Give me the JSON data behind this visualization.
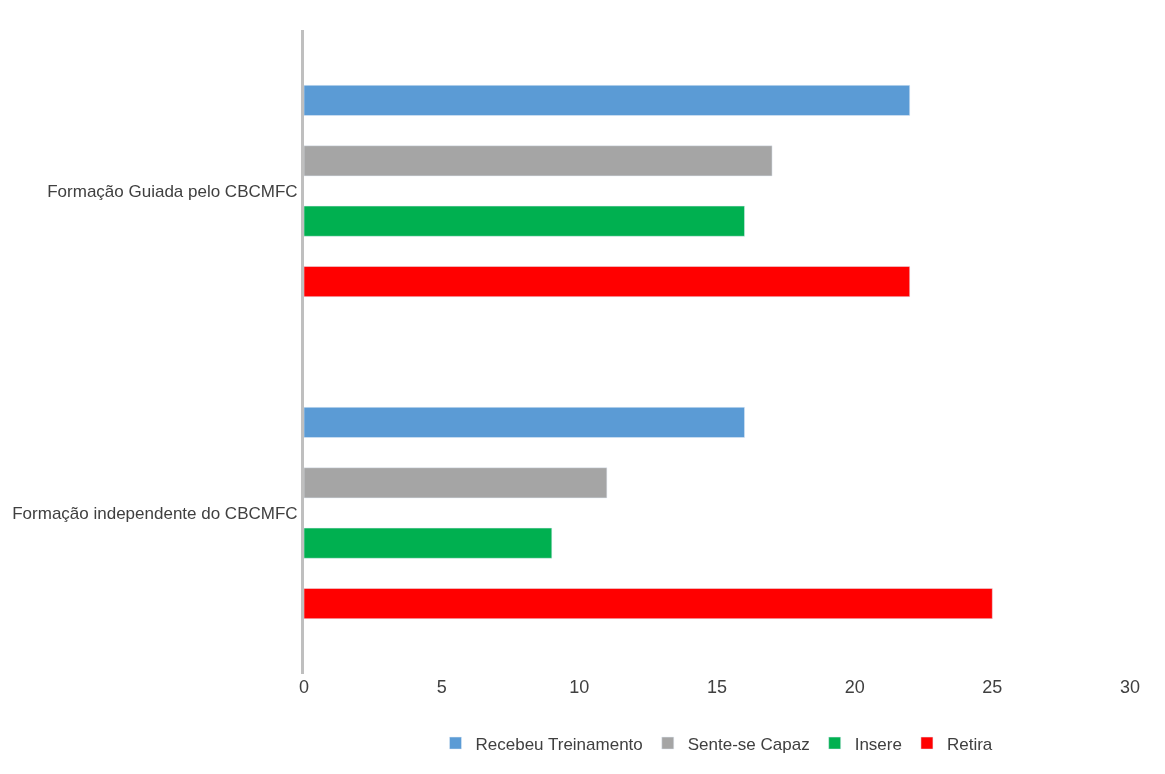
{
  "chart_data": {
    "type": "bar",
    "orientation": "horizontal",
    "categories": [
      "Formação Guiada pelo CBCMFC",
      "Formação independente do CBCMFC"
    ],
    "series": [
      {
        "name": "Recebeu Treinamento",
        "color": "#5b9bd5",
        "values": [
          22,
          16
        ]
      },
      {
        "name": "Sente-se Capaz",
        "color": "#a5a5a5",
        "values": [
          17,
          11
        ]
      },
      {
        "name": "Insere",
        "color": "#00b050",
        "values": [
          16,
          9
        ]
      },
      {
        "name": "Retira",
        "color": "#ff0000",
        "values": [
          22,
          25
        ]
      }
    ],
    "xlim": [
      0,
      30
    ],
    "xticks": [
      0,
      5,
      10,
      15,
      20,
      25,
      30
    ],
    "legend": "bottom"
  }
}
